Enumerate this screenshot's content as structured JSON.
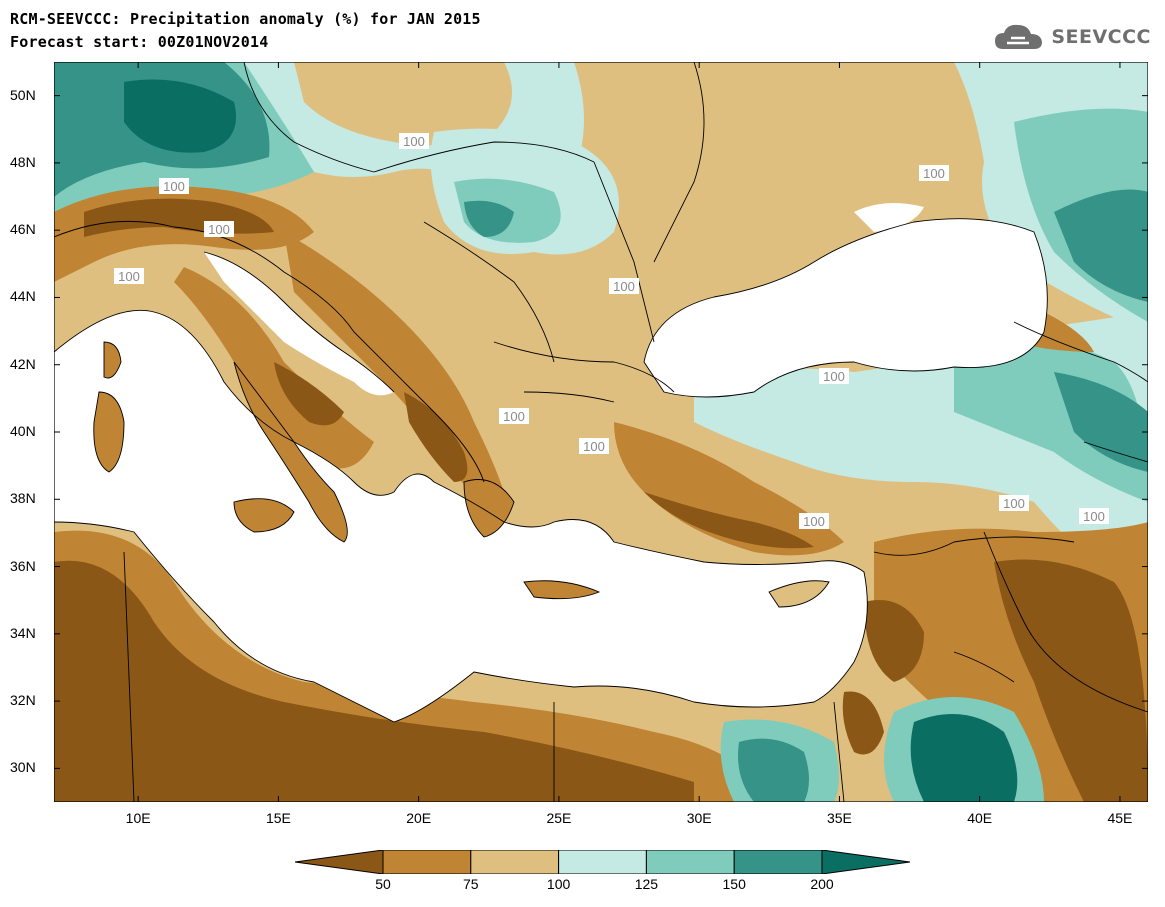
{
  "header": {
    "title_line1": "RCM-SEEVCCC: Precipitation anomaly (%) for JAN 2015",
    "title_line2": "Forecast start: 00Z01NOV2014",
    "logo_text": "SEEVCCC"
  },
  "map": {
    "lon_range": [
      7,
      46
    ],
    "lat_range": [
      29,
      51
    ],
    "lat_ticks": [
      "50N",
      "48N",
      "46N",
      "44N",
      "42N",
      "40N",
      "38N",
      "36N",
      "34N",
      "32N",
      "30N"
    ],
    "lon_ticks": [
      "10E",
      "15E",
      "20E",
      "25E",
      "30E",
      "35E",
      "40E",
      "45E"
    ],
    "contour_labels": [
      "100",
      "100",
      "100",
      "100",
      "100",
      "100",
      "100",
      "100",
      "100",
      "100",
      "100",
      "100"
    ]
  },
  "colorbar": {
    "labels": [
      "50",
      "75",
      "100",
      "125",
      "150",
      "200"
    ],
    "colors": [
      "#8b5716",
      "#bf8434",
      "#dfbf7f",
      "#c5e9e3",
      "#7fccbd",
      "#359387",
      "#0b6e62"
    ]
  }
}
